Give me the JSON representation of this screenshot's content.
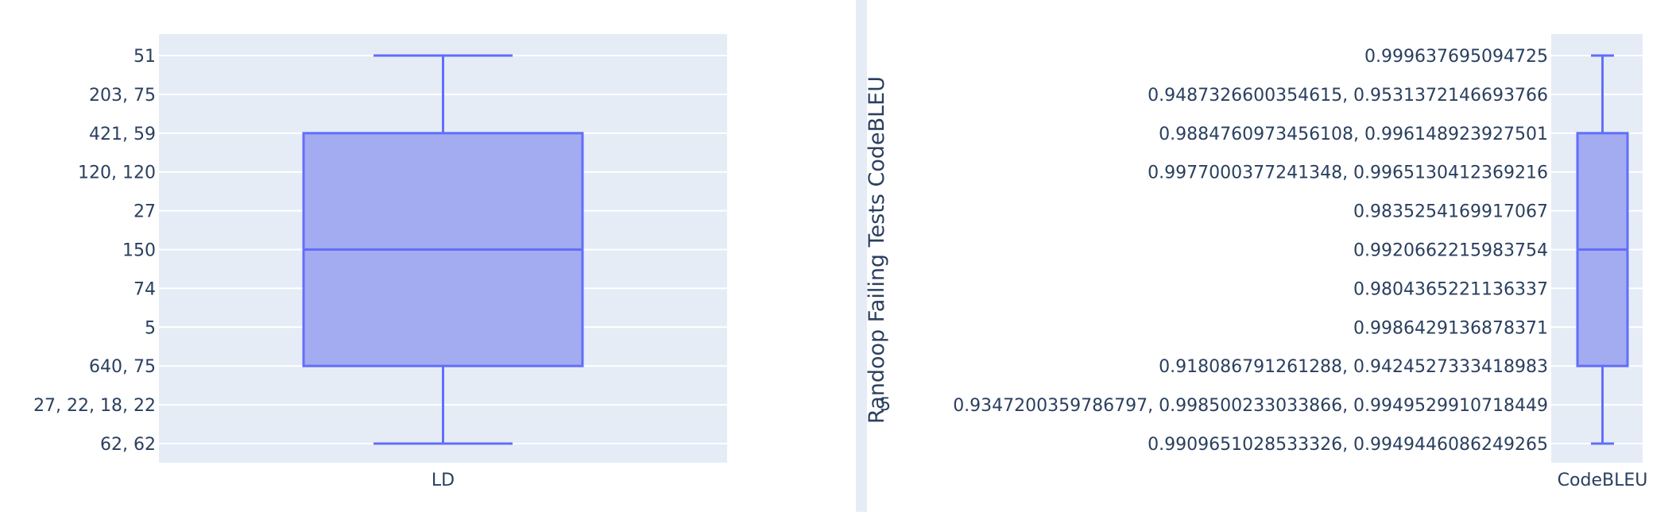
{
  "chart_data": [
    {
      "type": "box",
      "categories": [
        "LD"
      ],
      "y_tick_labels": [
        "51",
        "203, 75",
        "421, 59",
        "120, 120",
        "27",
        "150",
        "74",
        "5",
        "640, 75",
        "27, 22, 18, 22",
        "62, 62"
      ],
      "box": {
        "upper_fence": "51",
        "q3": "421, 59",
        "median": "150",
        "q1": "640, 75",
        "lower_fence": "62, 62"
      },
      "colors": {
        "fill": "#a3abf1",
        "line": "#636efa",
        "plot_bg": "#e5ecf6",
        "grid": "#ffffff"
      },
      "grid": true
    },
    {
      "type": "box",
      "categories": [
        "CodeBLEU"
      ],
      "ylabel": "Randoop Failing Tests CodeBLEU",
      "y_tick_labels": [
        "0.999637695094725",
        "0.9487326600354615, 0.9531372146693766",
        "0.9884760973456108, 0.996148923927501",
        "0.9977000377241348, 0.9965130412369216",
        "0.9835254169917067",
        "0.9920662215983754",
        "0.9804365221136337",
        "0.9986429136878371",
        "0.918086791261288, 0.9424527333418983",
        "0.9347200359786797, 0.998500233033866, 0.9949529910718449",
        "0.9909651028533326, 0.9949446086249265"
      ],
      "stray_tick_label": "5",
      "box": {
        "upper_fence": "0.999637695094725",
        "q3": "0.9884760973456108, 0.996148923927501",
        "median": "0.9920662215983754",
        "q1": "0.918086791261288, 0.9424527333418983",
        "lower_fence": "0.9909651028533326, 0.9949446086249265"
      },
      "colors": {
        "fill": "#a3abf1",
        "line": "#636efa",
        "plot_bg": "#e5ecf6",
        "grid": "#ffffff"
      },
      "grid": true
    }
  ]
}
